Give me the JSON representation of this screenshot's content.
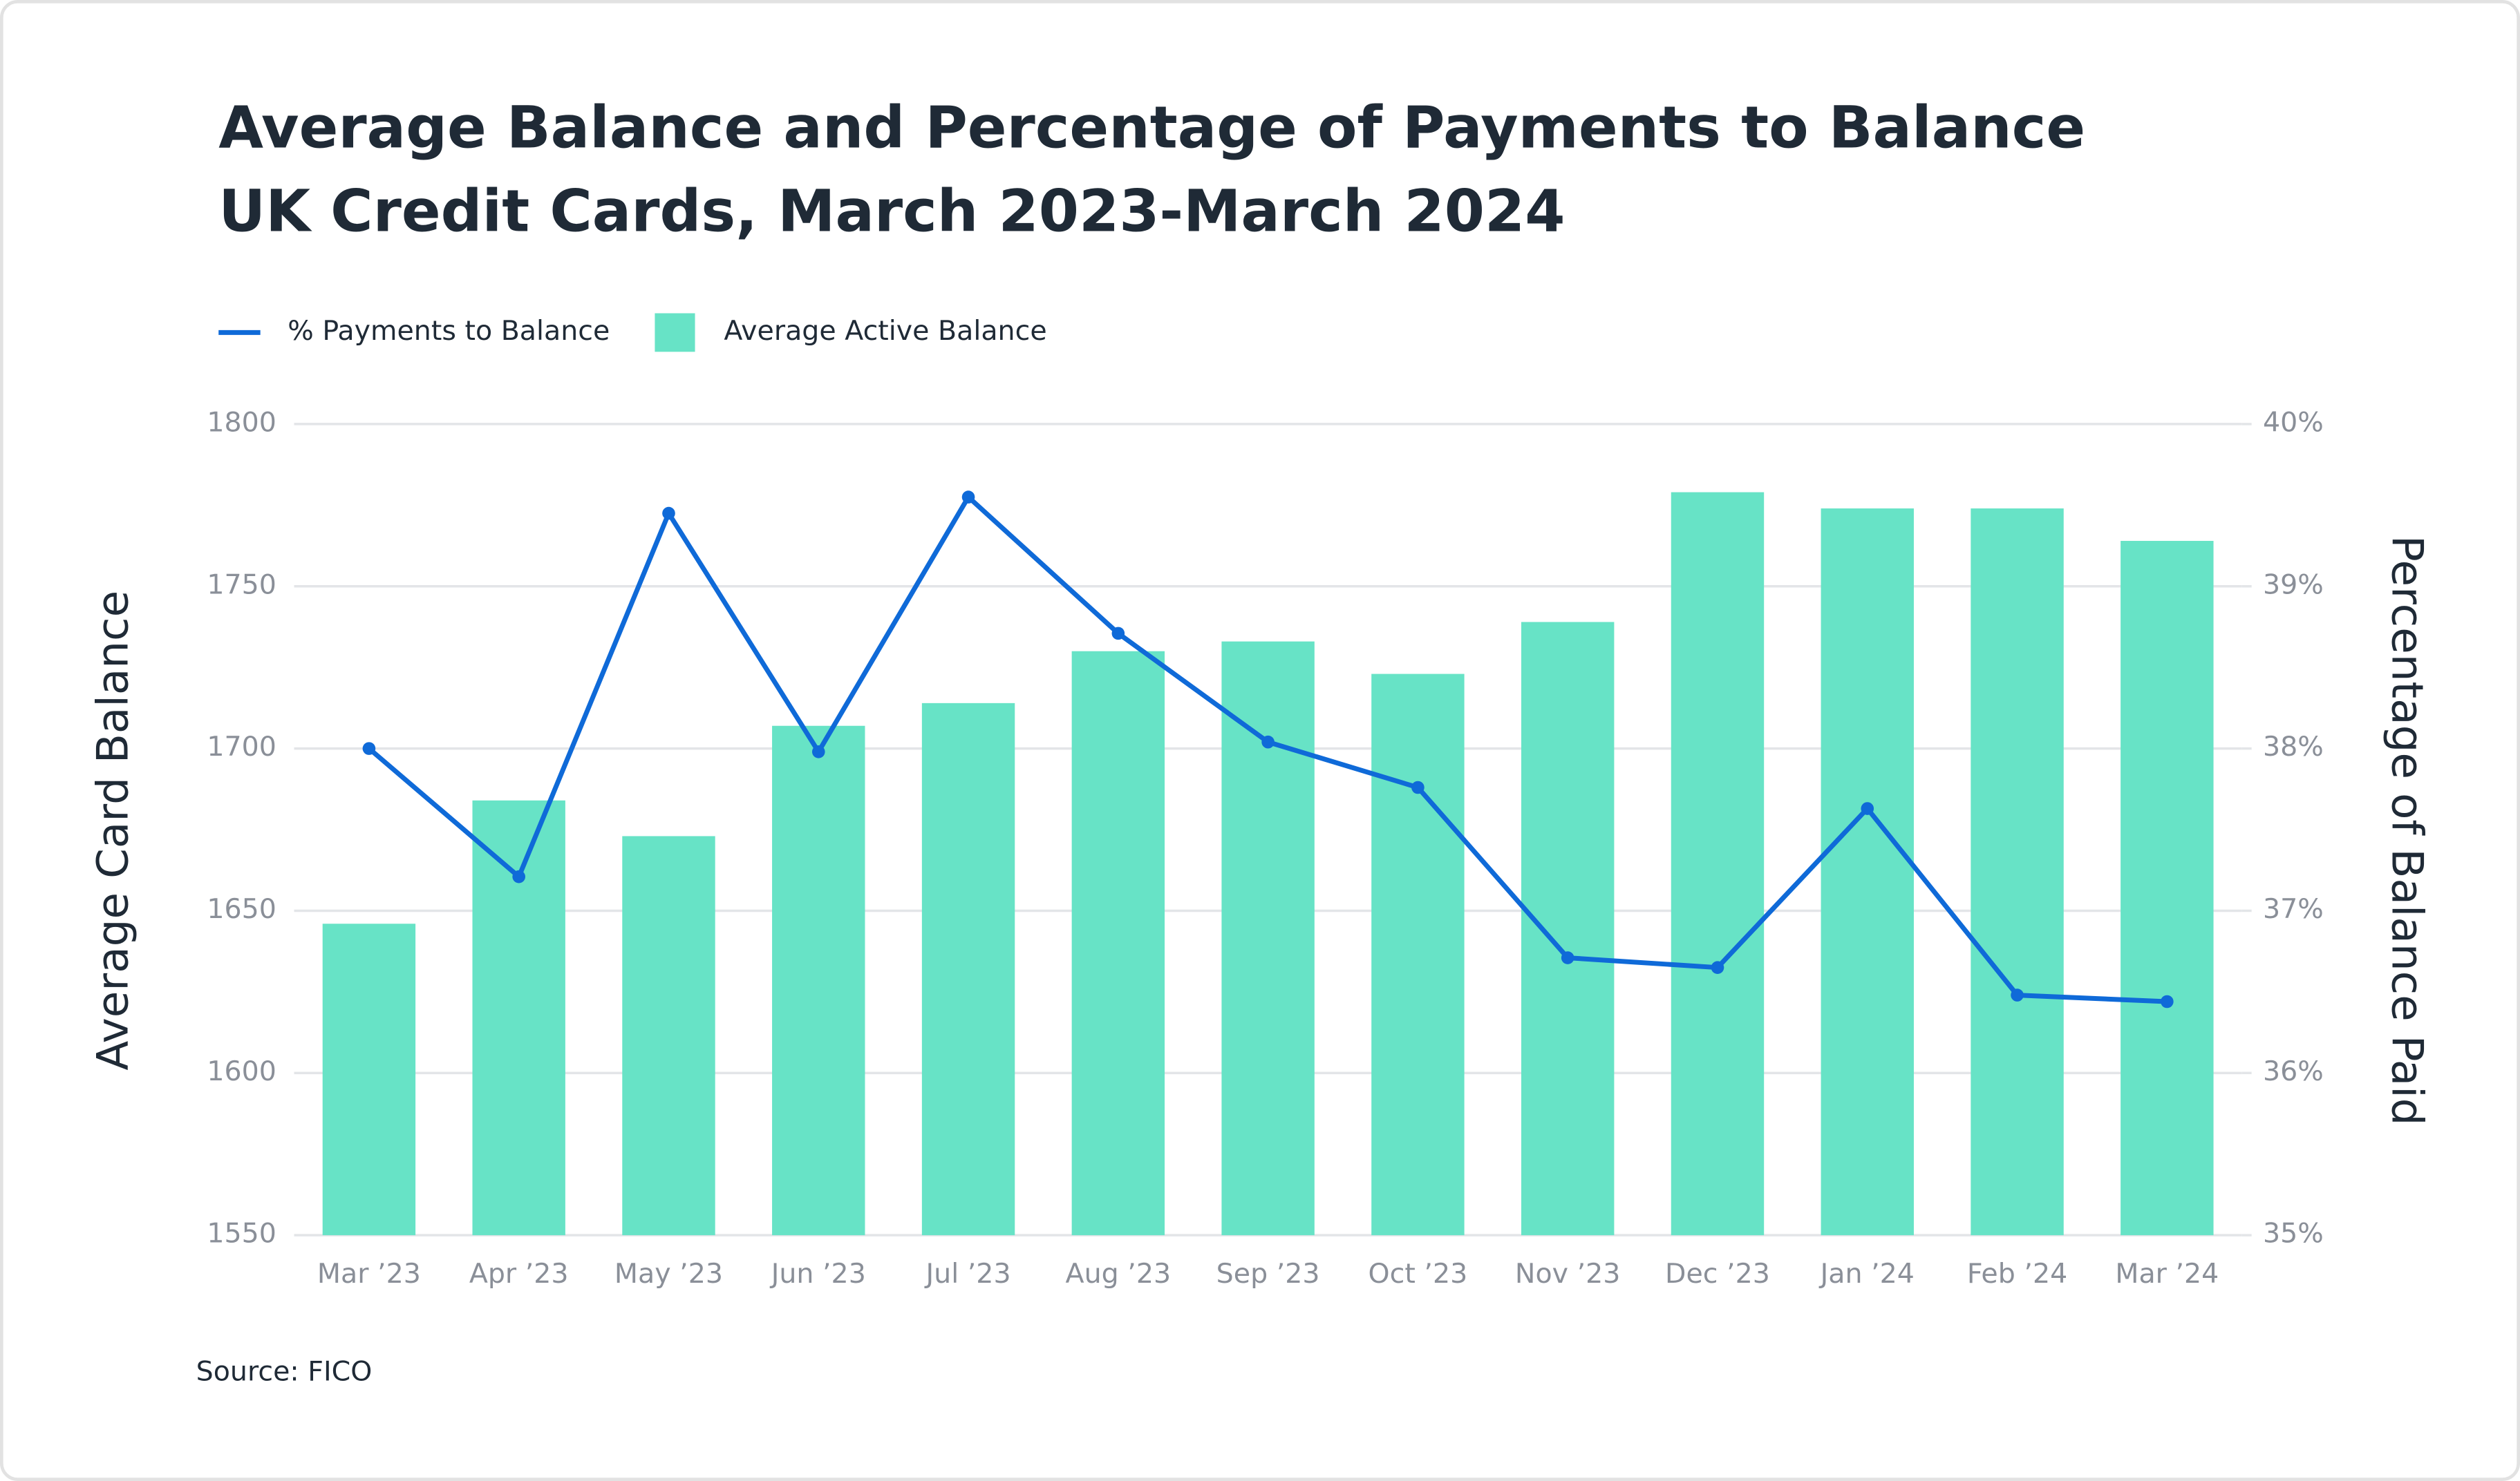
{
  "chart_data": {
    "type": "bar",
    "title": "Average Balance and Percentage of Payments to Balance",
    "subtitle": "UK Credit Cards, March 2023-March 2024",
    "source": "Source: FICO",
    "y_label": "Average Card Balance",
    "y2_label": "Percentage of Balance Paid",
    "categories": [
      "Mar ’23",
      "Apr ’23",
      "May ’23",
      "Jun ’23",
      "Jul ’23",
      "Aug ’23",
      "Sep ’23",
      "Oct ’23",
      "Nov ’23",
      "Dec ’23",
      "Jan ’24",
      "Feb ’24",
      "Mar ’24"
    ],
    "series": [
      {
        "name": "% Payments to Balance",
        "type": "line",
        "axis": "y2",
        "color": "#0f6ad8",
        "values": [
          38.0,
          37.21,
          39.45,
          37.98,
          39.55,
          38.71,
          38.04,
          37.76,
          36.71,
          36.65,
          37.63,
          36.48,
          36.44
        ]
      },
      {
        "name": "Average Active Balance",
        "type": "bar",
        "axis": "y",
        "color": "#67e3c6",
        "values": [
          1646,
          1684,
          1673,
          1707,
          1714,
          1730,
          1733,
          1723,
          1739,
          1779,
          1774,
          1774,
          1764
        ]
      }
    ],
    "ylim": [
      1550,
      1800
    ],
    "yticks": [
      1550,
      1600,
      1650,
      1700,
      1750,
      1800
    ],
    "y2lim": [
      35,
      40
    ],
    "y2ticks": [
      {
        "value": 35,
        "label": "35%"
      },
      {
        "value": 36,
        "label": "36%"
      },
      {
        "value": 37,
        "label": "37%"
      },
      {
        "value": 38,
        "label": "38%"
      },
      {
        "value": 39,
        "label": "39%"
      },
      {
        "value": 40,
        "label": "40%"
      }
    ],
    "grid": true,
    "legend": "top-left"
  }
}
